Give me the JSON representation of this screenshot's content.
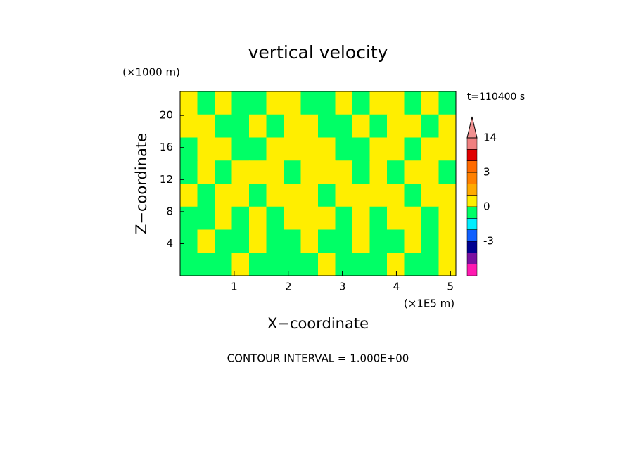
{
  "chart_data": {
    "type": "contour",
    "title": "vertical velocity",
    "x_label": "X−coordinate",
    "y_label": "Z−coordinate",
    "x_unit": "(×1E5 m)",
    "y_unit": "(×1000 m)",
    "time_label": "t=110400 s",
    "footer": "CONTOUR INTERVAL = 1.000E+00",
    "xlim": [
      0,
      5.1
    ],
    "ylim": [
      0,
      23
    ],
    "xticks": [
      1,
      2,
      3,
      4,
      5
    ],
    "yticks": [
      4,
      8,
      12,
      16,
      20
    ],
    "levels": [
      -5,
      -4,
      -3,
      -2,
      -1,
      0,
      1,
      2,
      3,
      6,
      10,
      14
    ],
    "colors": [
      "#ff19b0",
      "#7a10a0",
      "#000090",
      "#1060ff",
      "#00eeff",
      "#00ff66",
      "#ffee00",
      "#ffaa00",
      "#ff8000",
      "#ff6a00",
      "#e00000",
      "#f08080",
      "#f09090"
    ],
    "colorbar_ticks": [
      -3,
      0,
      3,
      14
    ],
    "z": [
      [
        0.5,
        -0.5,
        0.5,
        -0.5,
        -0.5,
        0.5,
        0.5,
        -0.5,
        -0.5,
        0.5,
        -0.5,
        0.5,
        0.5,
        -0.5,
        0.5,
        -0.5
      ],
      [
        0.5,
        0.5,
        -0.5,
        -0.5,
        0.5,
        -0.5,
        0.5,
        0.5,
        -0.5,
        -0.5,
        0.5,
        -0.5,
        0.5,
        0.5,
        -0.5,
        0.5
      ],
      [
        -0.5,
        0.5,
        0.5,
        -0.5,
        -0.5,
        0.5,
        0.5,
        0.5,
        0.5,
        -0.5,
        -0.5,
        0.5,
        0.5,
        -0.5,
        0.5,
        0.5
      ],
      [
        -0.5,
        0.5,
        -0.5,
        0.5,
        0.5,
        0.5,
        -0.5,
        0.5,
        0.5,
        0.5,
        -0.5,
        0.5,
        -0.5,
        0.5,
        0.5,
        -0.5
      ],
      [
        0.5,
        -0.5,
        0.5,
        0.5,
        -0.5,
        0.5,
        0.5,
        0.5,
        -0.5,
        0.5,
        0.5,
        0.5,
        0.5,
        -0.5,
        0.5,
        0.5
      ],
      [
        -0.5,
        -0.5,
        0.5,
        -0.5,
        0.5,
        -0.5,
        0.5,
        0.5,
        0.5,
        -0.5,
        0.5,
        -0.5,
        0.5,
        0.5,
        -0.5,
        0.5
      ],
      [
        -0.5,
        0.5,
        -0.5,
        -0.5,
        0.5,
        -0.5,
        -0.5,
        0.5,
        -0.5,
        -0.5,
        0.5,
        -0.5,
        -0.5,
        0.5,
        -0.5,
        0.5
      ],
      [
        -0.5,
        -0.5,
        -0.5,
        0.5,
        -0.5,
        -0.5,
        -0.5,
        -0.5,
        0.5,
        -0.5,
        -0.5,
        -0.5,
        0.5,
        -0.5,
        -0.5,
        0.5
      ]
    ]
  }
}
